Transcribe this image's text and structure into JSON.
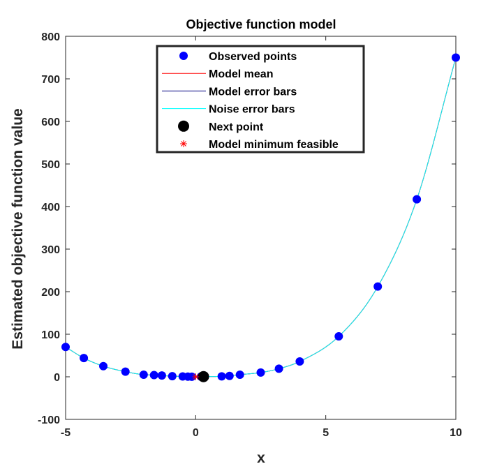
{
  "chart_data": {
    "type": "scatter",
    "title": "Objective function model",
    "xlabel": "x",
    "ylabel": "Estimated objective function value",
    "xlim": [
      -5,
      10
    ],
    "ylim": [
      -100,
      800
    ],
    "xticks": [
      "-5",
      "0",
      "5",
      "10"
    ],
    "yticks": [
      "-100",
      "0",
      "100",
      "200",
      "300",
      "400",
      "500",
      "600",
      "700",
      "800"
    ],
    "grid": false,
    "legend_position": "top-center",
    "colors": {
      "observed": "#0000ff",
      "model_mean": "#ff0000",
      "model_error": "#00007f",
      "noise_error": "#00ffff",
      "next_point": "#000000",
      "model_min": "#ff0000"
    },
    "legend": [
      {
        "key": "observed",
        "label": "Observed points"
      },
      {
        "key": "model_mean",
        "label": "Model mean"
      },
      {
        "key": "model_error",
        "label": "Model error bars"
      },
      {
        "key": "noise_error",
        "label": "Noise error bars"
      },
      {
        "key": "next_point",
        "label": "Next point"
      },
      {
        "key": "model_min",
        "label": "Model minimum feasible"
      }
    ],
    "series": [
      {
        "name": "Observed points",
        "x": [
          -5,
          -4.3,
          -3.55,
          -2.7,
          -2.0,
          -1.6,
          -1.3,
          -0.9,
          -0.5,
          -0.3,
          -0.15,
          0.2,
          1.0,
          1.3,
          1.7,
          2.5,
          3.2,
          4.0,
          5.5,
          7.0,
          8.5,
          10.0
        ],
        "y": [
          70,
          44,
          25,
          12,
          5,
          4,
          3,
          1.5,
          0.8,
          0.5,
          0.2,
          0.4,
          1,
          2,
          5,
          10,
          19,
          36,
          95,
          212,
          417,
          750
        ]
      },
      {
        "name": "Next point",
        "x": [
          0.3
        ],
        "y": [
          0.5
        ]
      },
      {
        "name": "Model minimum feasible",
        "x": [
          0.0
        ],
        "y": [
          0.0
        ]
      }
    ]
  }
}
